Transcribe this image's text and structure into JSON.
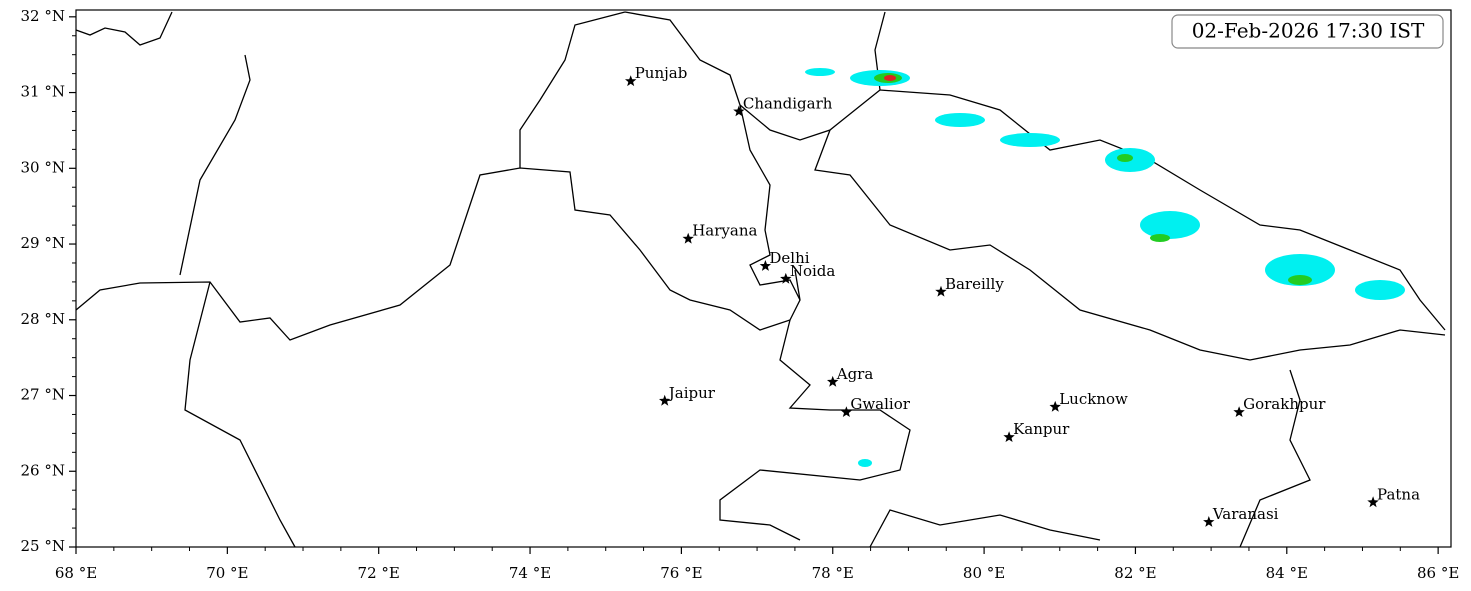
{
  "chart_data": {
    "type": "map",
    "annotation": "02-Feb-2026 17:30 IST",
    "xlim": [
      68,
      86.17
    ],
    "ylim": [
      25,
      32.09
    ],
    "xticks": [
      {
        "value": 68,
        "label": "68 °E"
      },
      {
        "value": 70,
        "label": "70 °E"
      },
      {
        "value": 72,
        "label": "72 °E"
      },
      {
        "value": 74,
        "label": "74 °E"
      },
      {
        "value": 76,
        "label": "76 °E"
      },
      {
        "value": 78,
        "label": "78 °E"
      },
      {
        "value": 80,
        "label": "80 °E"
      },
      {
        "value": 82,
        "label": "82 °E"
      },
      {
        "value": 84,
        "label": "84 °E"
      },
      {
        "value": 86,
        "label": "86 °E"
      }
    ],
    "yticks": [
      {
        "value": 25,
        "label": "25 °N"
      },
      {
        "value": 26,
        "label": "26 °N"
      },
      {
        "value": 27,
        "label": "27 °N"
      },
      {
        "value": 28,
        "label": "28 °N"
      },
      {
        "value": 29,
        "label": "29 °N"
      },
      {
        "value": 30,
        "label": "30 °N"
      },
      {
        "value": 31,
        "label": "31 °N"
      },
      {
        "value": 32,
        "label": "32 °N"
      }
    ],
    "points": [
      {
        "label": "Punjab",
        "x": 75.33,
        "y": 31.15
      },
      {
        "label": "Chandigarh",
        "x": 76.76,
        "y": 30.75
      },
      {
        "label": "Haryana",
        "x": 76.09,
        "y": 29.07
      },
      {
        "label": "Delhi",
        "x": 77.11,
        "y": 28.71
      },
      {
        "label": "Noida",
        "x": 77.38,
        "y": 28.54
      },
      {
        "label": "Bareilly",
        "x": 79.43,
        "y": 28.37
      },
      {
        "label": "Agra",
        "x": 78.0,
        "y": 27.18
      },
      {
        "label": "Jaipur",
        "x": 75.78,
        "y": 26.93
      },
      {
        "label": "Gwalior",
        "x": 78.18,
        "y": 26.78
      },
      {
        "label": "Lucknow",
        "x": 80.94,
        "y": 26.85
      },
      {
        "label": "Kanpur",
        "x": 80.33,
        "y": 26.45
      },
      {
        "label": "Gorakhpur",
        "x": 83.37,
        "y": 26.78
      },
      {
        "label": "Patna",
        "x": 85.14,
        "y": 25.59
      },
      {
        "label": "Varanasi",
        "x": 82.97,
        "y": 25.33
      }
    ]
  }
}
